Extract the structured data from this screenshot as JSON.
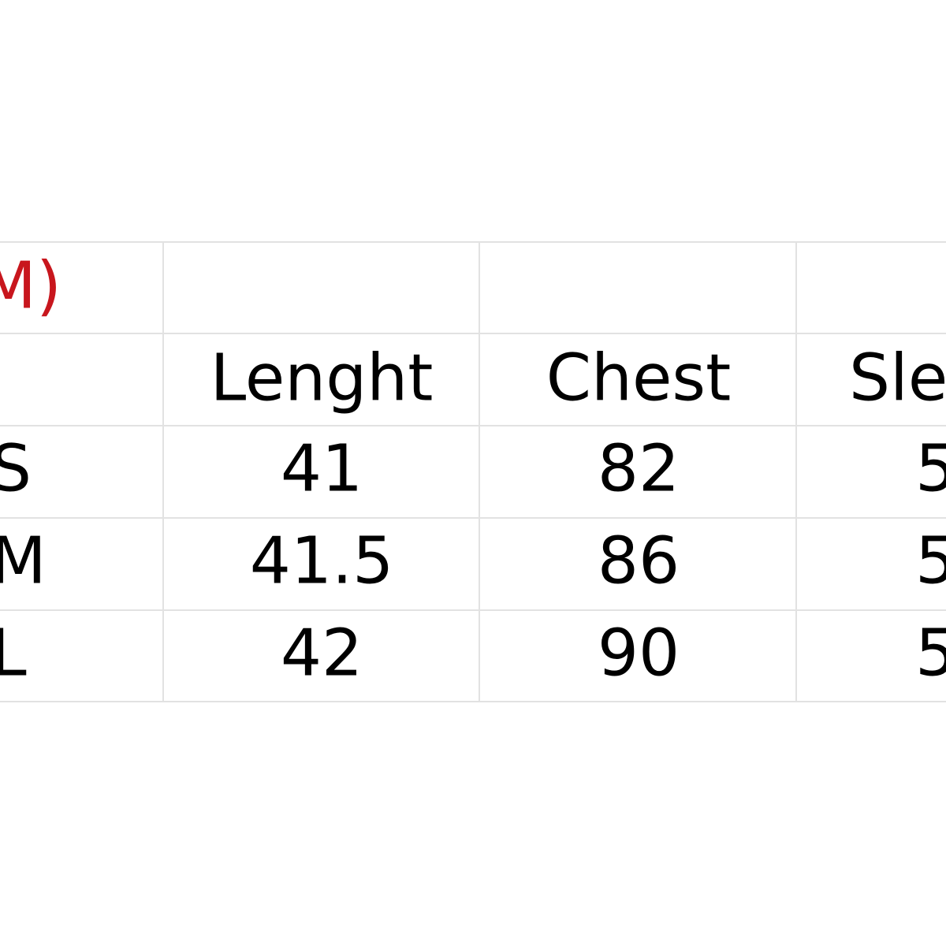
{
  "title": "M)",
  "header": [
    "Lenght",
    "Chest",
    "Sle"
  ],
  "rows": [
    {
      "size": "S",
      "values": [
        "41",
        "82",
        "5"
      ]
    },
    {
      "size": "M",
      "values": [
        "41.5",
        "86",
        "5"
      ]
    },
    {
      "size": "L",
      "values": [
        "42",
        "90",
        "5"
      ]
    }
  ]
}
